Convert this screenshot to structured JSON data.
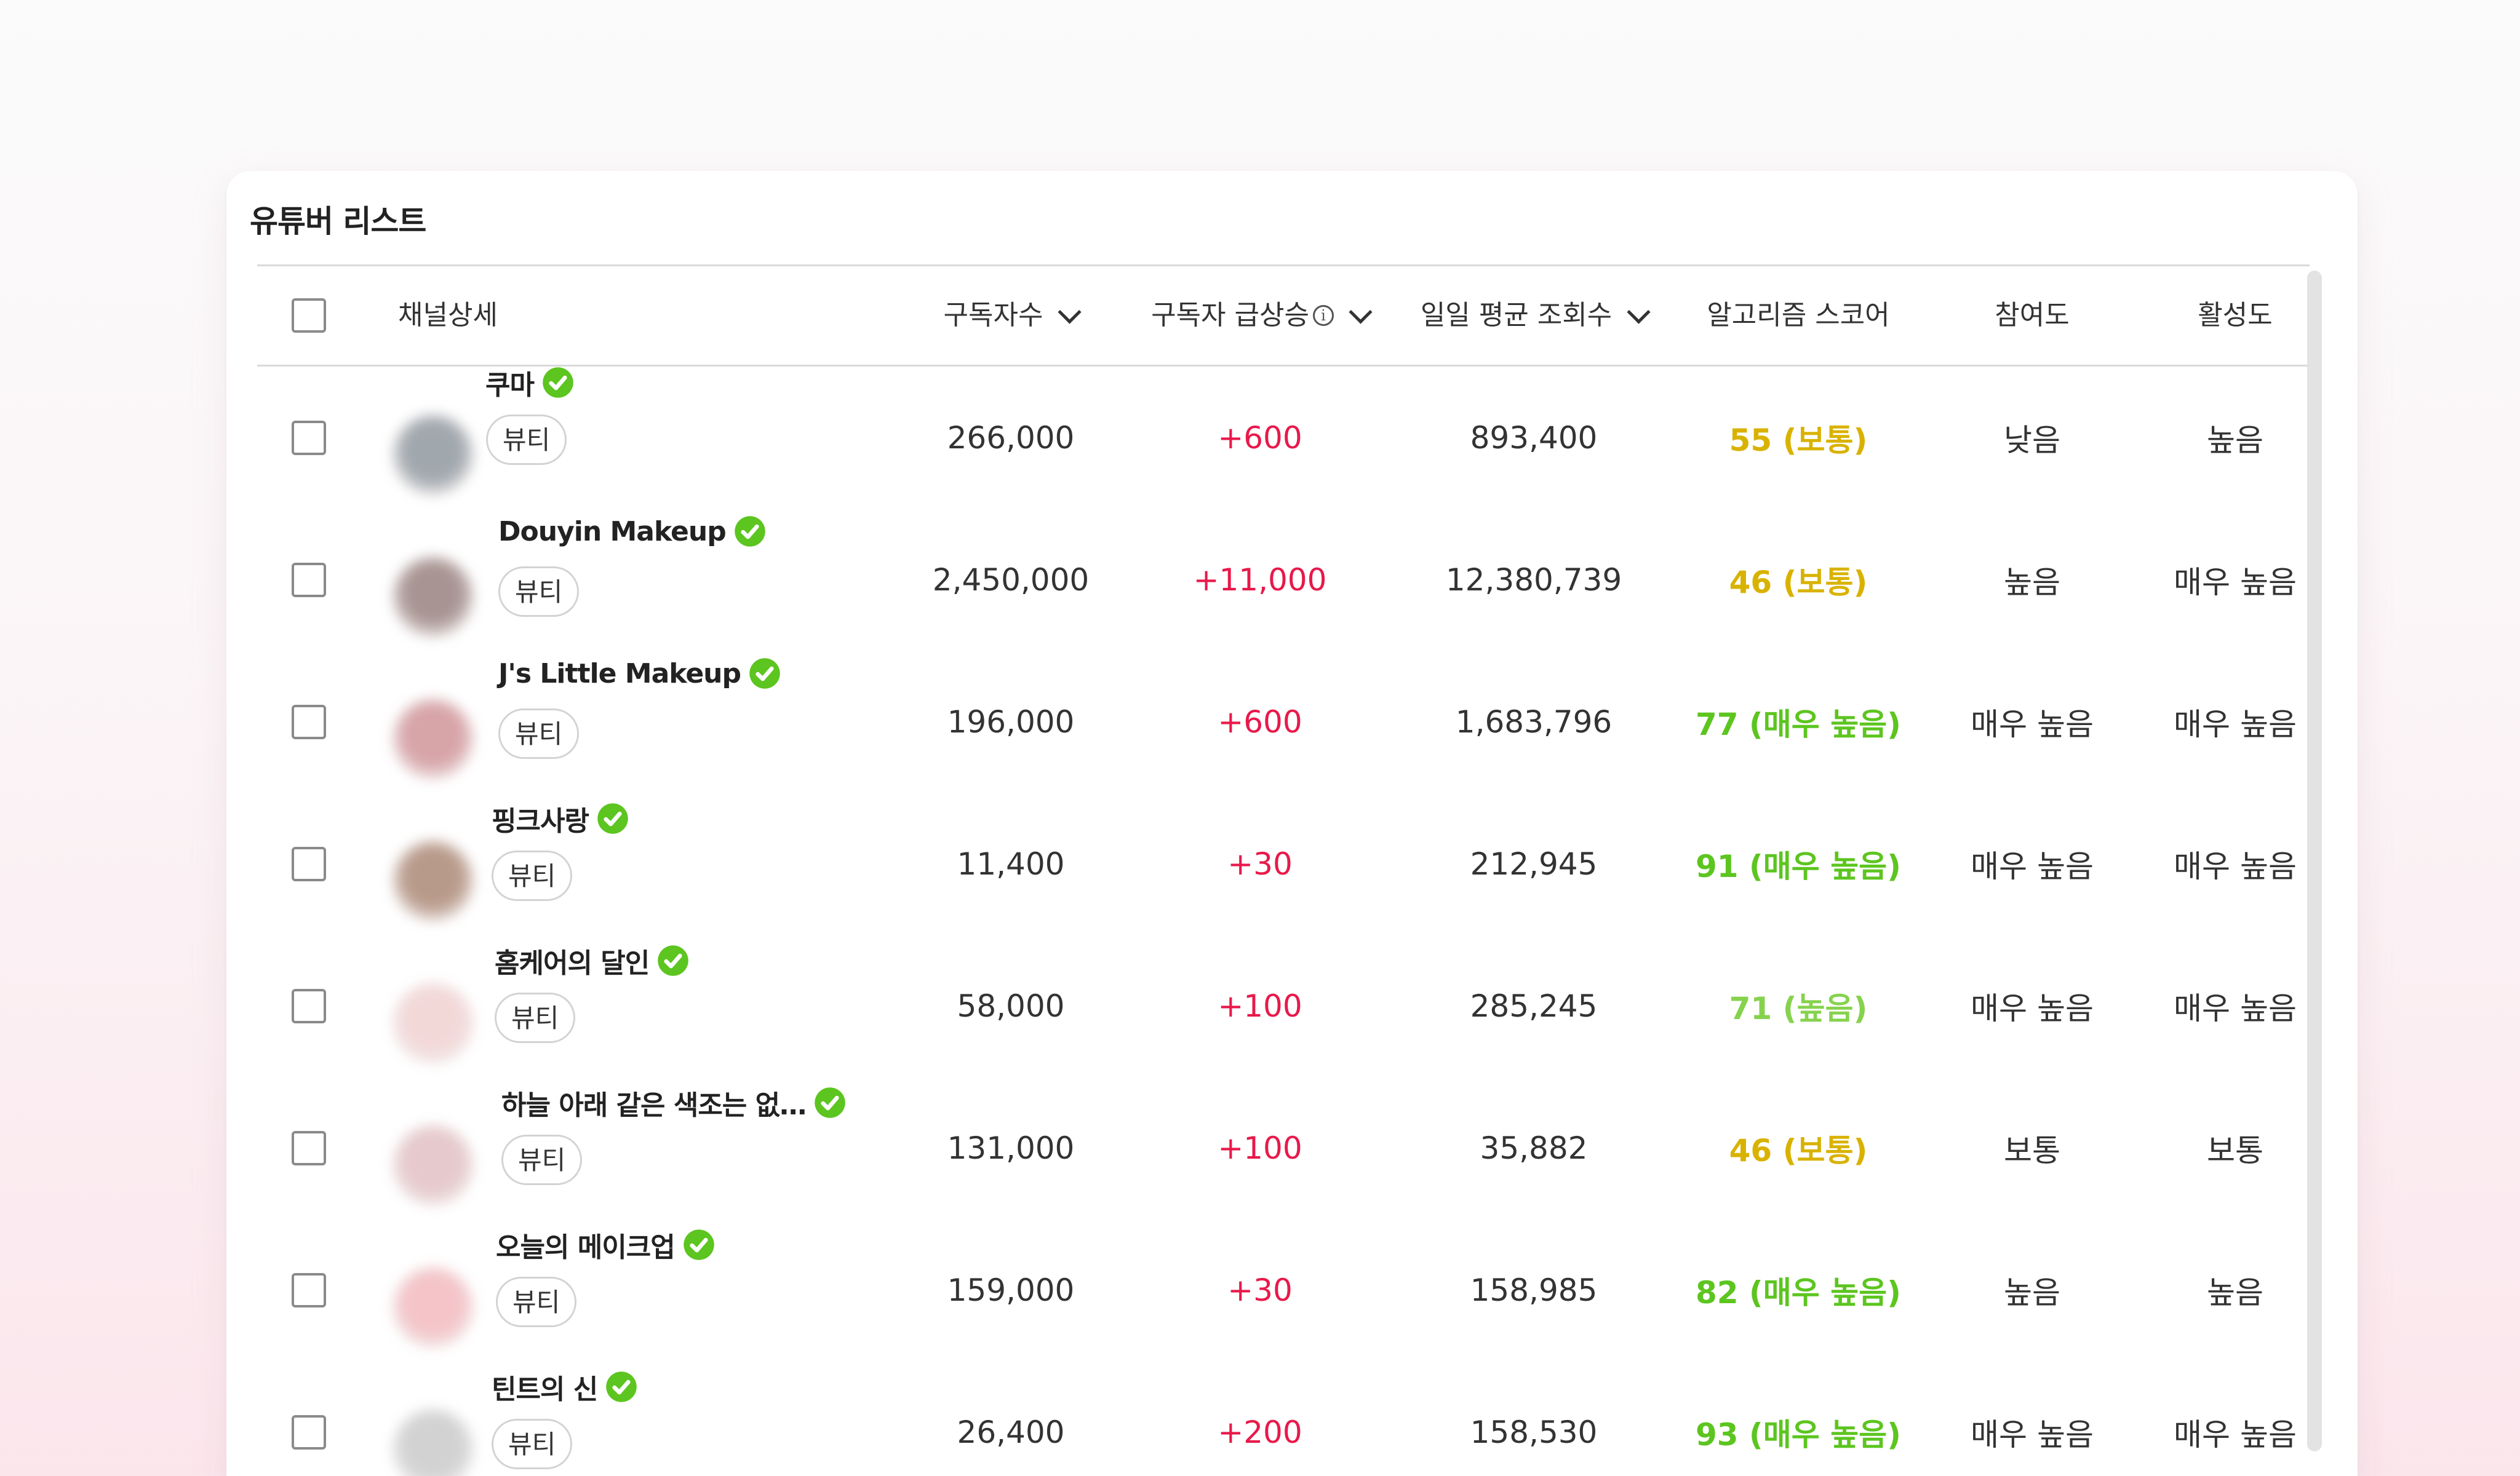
{
  "card": {
    "title": "유튜버 리스트"
  },
  "columns": {
    "channel": "채널상세",
    "subscribers": "구독자수",
    "surge": "구독자 급상승",
    "daily_views": "일일 평균 조회수",
    "algorithm": "알고리즘 스코어",
    "engagement": "참여도",
    "activity": "활성도"
  },
  "icons": {
    "sort": "chevron-down-icon",
    "info": "info-icon",
    "verified": "verified-badge-icon"
  },
  "colors": {
    "growth": "#e8194a",
    "score_normal": "#d9b200",
    "score_very_high": "#5cc51f",
    "score_high": "#86d24d",
    "verified_badge": "#5cc51f"
  },
  "rows": [
    {
      "name": "쿠마",
      "category": "뷰티",
      "subscribers": "266,000",
      "surge": "+600",
      "daily_views": "893,400",
      "score": "55 (보통)",
      "score_level": "normal",
      "engagement": "낮음",
      "activity": "높음",
      "avatar_color": "#a0a7ad"
    },
    {
      "name": "Douyin Makeup",
      "category": "뷰티",
      "subscribers": "2,450,000",
      "surge": "+11,000",
      "daily_views": "12,380,739",
      "score": "46 (보통)",
      "score_level": "normal",
      "engagement": "높음",
      "activity": "매우 높음",
      "avatar_color": "#a89593"
    },
    {
      "name": "J's Little Makeup",
      "category": "뷰티",
      "subscribers": "196,000",
      "surge": "+600",
      "daily_views": "1,683,796",
      "score": "77 (매우 높음)",
      "score_level": "very_high",
      "engagement": "매우 높음",
      "activity": "매우 높음",
      "avatar_color": "#d7a4a8"
    },
    {
      "name": "핑크사랑",
      "category": "뷰티",
      "subscribers": "11,400",
      "surge": "+30",
      "daily_views": "212,945",
      "score": "91 (매우 높음)",
      "score_level": "very_high",
      "engagement": "매우 높음",
      "activity": "매우 높음",
      "avatar_color": "#b89a8a"
    },
    {
      "name": "홈케어의 달인",
      "category": "뷰티",
      "subscribers": "58,000",
      "surge": "+100",
      "daily_views": "285,245",
      "score": "71 (높음)",
      "score_level": "high",
      "engagement": "매우 높음",
      "activity": "매우 높음",
      "avatar_color": "#f3d8d8"
    },
    {
      "name": "하늘 아래 같은 색조는 없…",
      "category": "뷰티",
      "subscribers": "131,000",
      "surge": "+100",
      "daily_views": "35,882",
      "score": "46 (보통)",
      "score_level": "normal",
      "engagement": "보통",
      "activity": "보통",
      "avatar_color": "#e6c9cc"
    },
    {
      "name": "오늘의 메이크업",
      "category": "뷰티",
      "subscribers": "159,000",
      "surge": "+30",
      "daily_views": "158,985",
      "score": "82 (매우 높음)",
      "score_level": "very_high",
      "engagement": "높음",
      "activity": "높음",
      "avatar_color": "#f4c4c8"
    },
    {
      "name": "틴트의 신",
      "category": "뷰티",
      "subscribers": "26,400",
      "surge": "+200",
      "daily_views": "158,530",
      "score": "93 (매우 높음)",
      "score_level": "very_high",
      "engagement": "매우 높음",
      "activity": "매우 높음",
      "avatar_color": "#d2d2d2"
    }
  ]
}
